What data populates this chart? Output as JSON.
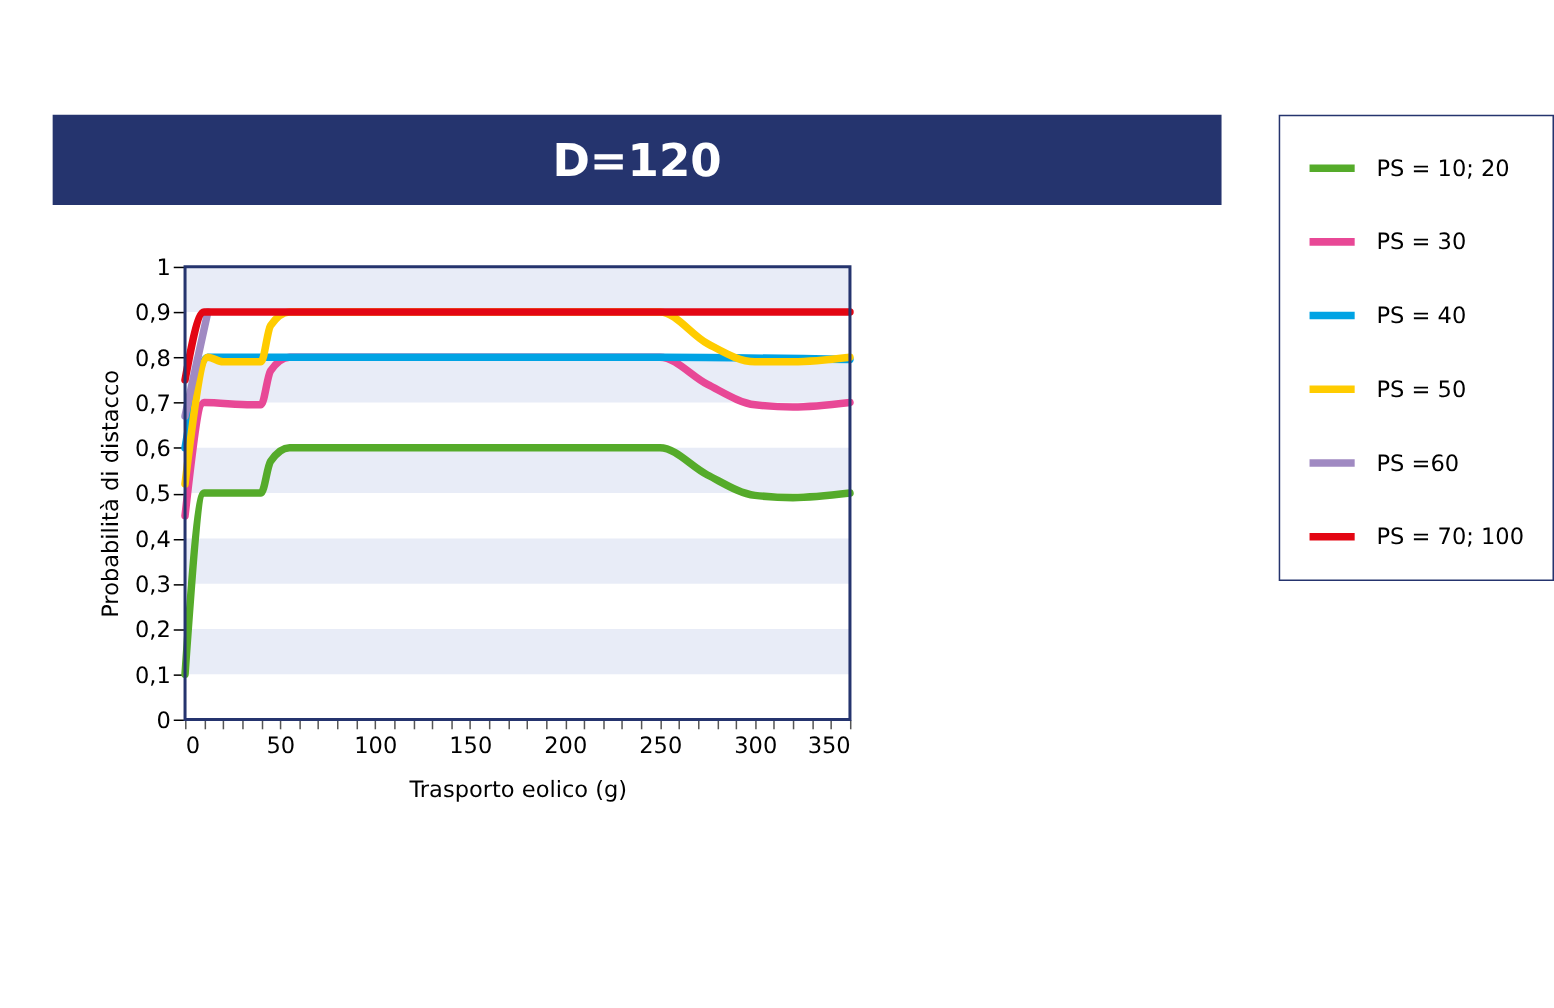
{
  "chart_data": {
    "type": "line",
    "title": "D=120",
    "xlabel": "Trasporto eolico (g)",
    "ylabel": "Probabilità di distacco",
    "xlim": [
      0,
      350
    ],
    "ylim": [
      0,
      1
    ],
    "xticks": [
      0,
      {
        "value": 10,
        "label": null
      },
      {
        "value": 20,
        "label": null
      },
      {
        "value": 30,
        "label": null
      },
      {
        "value": 40,
        "label": null
      },
      50,
      {
        "value": 60,
        "label": null
      },
      {
        "value": 70,
        "label": null
      },
      {
        "value": 80,
        "label": null
      },
      {
        "value": 90,
        "label": null
      },
      100,
      {
        "value": 110,
        "label": null
      },
      {
        "value": 120,
        "label": null
      },
      {
        "value": 130,
        "label": null
      },
      {
        "value": 140,
        "label": null
      },
      150,
      {
        "value": 160,
        "label": null
      },
      {
        "value": 170,
        "label": null
      },
      {
        "value": 180,
        "label": null
      },
      {
        "value": 190,
        "label": null
      },
      200,
      {
        "value": 210,
        "label": null
      },
      {
        "value": 220,
        "label": null
      },
      {
        "value": 230,
        "label": null
      },
      {
        "value": 240,
        "label": null
      },
      250,
      {
        "value": 260,
        "label": null
      },
      {
        "value": 270,
        "label": null
      },
      {
        "value": 280,
        "label": null
      },
      {
        "value": 290,
        "label": null
      },
      300,
      {
        "value": 310,
        "label": null
      },
      {
        "value": 320,
        "label": null
      },
      {
        "value": 330,
        "label": null
      },
      {
        "value": 340,
        "label": null
      },
      350
    ],
    "yticks": [
      0,
      {
        "value": 0.1,
        "label": "0,1"
      },
      {
        "value": 0.2,
        "label": "0,2"
      },
      {
        "value": 0.3,
        "label": "0,3"
      },
      {
        "value": 0.4,
        "label": "0,4"
      },
      {
        "value": 0.5,
        "label": "0,5"
      },
      {
        "value": 0.6,
        "label": "0,6"
      },
      {
        "value": 0.7,
        "label": "0,7"
      },
      {
        "value": 0.8,
        "label": "0,8"
      },
      {
        "value": 0.9,
        "label": "0,9"
      },
      1
    ],
    "bands": [
      {
        "axis": "y",
        "from": 0.1,
        "to": 0.2,
        "color": "#e8ecf7"
      },
      {
        "axis": "y",
        "from": 0.3,
        "to": 0.4,
        "color": "#e8ecf7"
      },
      {
        "axis": "y",
        "from": 0.5,
        "to": 0.6,
        "color": "#e8ecf7"
      },
      {
        "axis": "y",
        "from": 0.7,
        "to": 0.8,
        "color": "#e8ecf7"
      },
      {
        "axis": "y",
        "from": 0.9,
        "to": 1,
        "color": "#e8ecf7"
      }
    ],
    "grid": false,
    "legend": "right",
    "marker": "none",
    "line_style": "solid",
    "series": [
      {
        "name": "PS = 10; 20",
        "color": "#55ab2a",
        "x": [
          0,
          10,
          35,
          40,
          45,
          55,
          70,
          150,
          250,
          275,
          300,
          320,
          350
        ],
        "values": [
          0.1,
          0.5,
          0.5,
          0.5,
          0.57,
          0.6,
          0.6,
          0.6,
          0.6,
          0.54,
          0.495,
          0.49,
          0.5
        ]
      },
      {
        "name": "PS = 30",
        "color": "#e84896",
        "x": [
          0,
          10,
          35,
          40,
          45,
          55,
          250,
          275,
          300,
          320,
          350
        ],
        "values": [
          0.45,
          0.7,
          0.695,
          0.695,
          0.77,
          0.8,
          0.8,
          0.74,
          0.695,
          0.69,
          0.7
        ]
      },
      {
        "name": "PS = 40",
        "color": "#00a3e4",
        "x": [
          0,
          12,
          20,
          150,
          250,
          350
        ],
        "values": [
          0.6,
          0.8,
          0.8,
          0.8,
          0.8,
          0.795
        ]
      },
      {
        "name": "PS = 50",
        "color": "#ffcc00",
        "x": [
          0,
          12,
          20,
          40,
          45,
          55,
          250,
          275,
          300,
          320,
          350
        ],
        "values": [
          0.52,
          0.8,
          0.79,
          0.79,
          0.87,
          0.9,
          0.9,
          0.83,
          0.79,
          0.79,
          0.8
        ]
      },
      {
        "name": "PS =60",
        "color": "#a08ac2",
        "x": [
          0,
          12
        ],
        "values": [
          0.67,
          0.9
        ]
      },
      {
        "name": "PS = 70; 100",
        "color": "#e30613",
        "x": [
          0,
          10,
          20,
          150,
          250,
          350
        ],
        "values": [
          0.75,
          0.9,
          0.9,
          0.9,
          0.9,
          0.9
        ]
      }
    ]
  }
}
